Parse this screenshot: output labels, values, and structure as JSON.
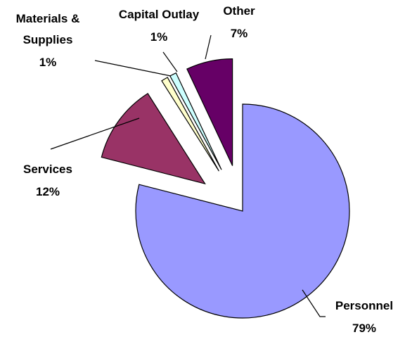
{
  "chart_data": {
    "type": "pie",
    "categories": [
      "Personnel",
      "Services",
      "Materials & Supplies",
      "Capital Outlay",
      "Other"
    ],
    "values": [
      79,
      12,
      1,
      1,
      7
    ],
    "value_labels": [
      "79%",
      "12%",
      "1%",
      "1%",
      "7%"
    ],
    "colors": [
      "#9999ff",
      "#993366",
      "#ffffcc",
      "#ccffff",
      "#660066"
    ]
  }
}
